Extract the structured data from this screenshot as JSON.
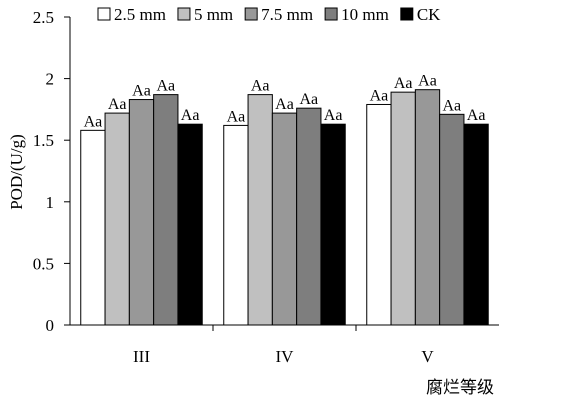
{
  "chart_data": {
    "type": "bar",
    "categories": [
      "III",
      "IV",
      "V"
    ],
    "series": [
      {
        "name": "2.5 mm",
        "color": "#ffffff",
        "values": [
          1.58,
          1.62,
          1.79
        ],
        "labels": [
          "Aa",
          "Aa",
          "Aa"
        ]
      },
      {
        "name": "5 mm",
        "color": "#c0c0c0",
        "values": [
          1.72,
          1.87,
          1.89
        ],
        "labels": [
          "Aa",
          "Aa",
          "Aa"
        ]
      },
      {
        "name": "7.5 mm",
        "color": "#989898",
        "values": [
          1.83,
          1.72,
          1.91
        ],
        "labels": [
          "Aa",
          "Aa",
          "Aa"
        ]
      },
      {
        "name": "10 mm",
        "color": "#7e7e7e",
        "values": [
          1.87,
          1.76,
          1.71
        ],
        "labels": [
          "Aa",
          "Aa",
          "Aa"
        ]
      },
      {
        "name": "CK",
        "color": "#000000",
        "values": [
          1.63,
          1.63,
          1.63
        ],
        "labels": [
          "Aa",
          "Aa",
          "Aa"
        ]
      }
    ],
    "ylabel": "POD/(U/g)",
    "xlabel": "腐烂等级",
    "ylim": [
      0,
      2.5
    ],
    "yticks": [
      {
        "value": 0,
        "label": "0"
      },
      {
        "value": 0.5,
        "label": "0.5"
      },
      {
        "value": 1,
        "label": "1"
      },
      {
        "value": 1.5,
        "label": "1.5"
      },
      {
        "value": 2,
        "label": "2"
      },
      {
        "value": 2.5,
        "label": "2.5"
      }
    ],
    "grid": false,
    "legend_position": "top"
  }
}
